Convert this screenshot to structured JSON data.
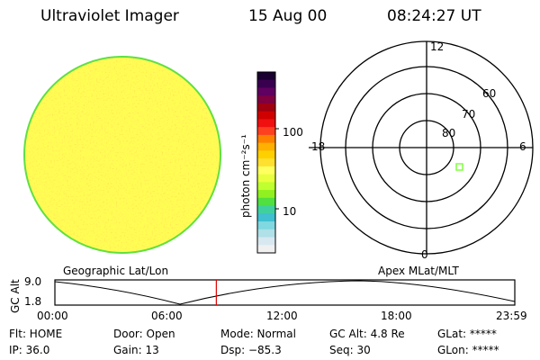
{
  "header": {
    "instrument": "Ultraviolet Imager",
    "date": "15 Aug 00",
    "time": "08:24:27 UT"
  },
  "colorbar": {
    "label": "photon cm⁻²s⁻¹",
    "ticks": [
      "100",
      "10"
    ],
    "colors": [
      "#1a0030",
      "#3a0050",
      "#600060",
      "#800040",
      "#a00010",
      "#d00000",
      "#f01010",
      "#ff4020",
      "#ff8000",
      "#ffb000",
      "#ffd000",
      "#ffe030",
      "#ffff60",
      "#e8ff40",
      "#c0ff30",
      "#90f020",
      "#50e040",
      "#40d0a0",
      "#40c0d0",
      "#80d8e0",
      "#b0e0e8",
      "#d8e8f0",
      "#f0f0f0"
    ]
  },
  "polar": {
    "mlt_labels": {
      "top": "12",
      "left": "18",
      "right": "6",
      "bottom": "0"
    },
    "lat_labels": [
      "60",
      "70",
      "80"
    ],
    "marker_color": "#80ff40"
  },
  "orbit": {
    "left_label": "Geographic Lat/Lon",
    "right_label": "Apex MLat/MLT",
    "ylabel": "GC Alt",
    "yticks": [
      "9.0",
      "1.8"
    ],
    "xticks": [
      "00:00",
      "06:00",
      "12:00",
      "18:00",
      "23:59"
    ],
    "current_time_fraction": 0.351,
    "current_line_color": "#e00000"
  },
  "status": {
    "flt": "Flt: HOME",
    "ip": "IP: 36.0",
    "door": "Door: Open",
    "gain": "Gain: 13",
    "mode": "Mode: Normal",
    "dsp": "Dsp:  −85.3",
    "gc_alt": "GC Alt: 4.8 Re",
    "seq": "Seq: 30",
    "glat": "GLat: *****",
    "glon": "GLon: *****"
  }
}
